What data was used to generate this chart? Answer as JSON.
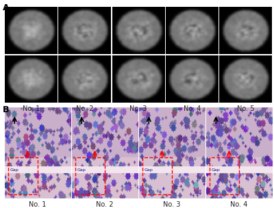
{
  "panel_a_label": "A",
  "panel_b_label": "B",
  "panel_a_numbers": [
    "No. 1",
    "No. 2",
    "No. 3",
    "No. 4",
    "No. 5"
  ],
  "panel_b_numbers": [
    "No. 1",
    "No. 2",
    "No. 3",
    "No. 4"
  ],
  "background_color": "#ffffff",
  "panel_a_bg": "#000000",
  "panel_b_bg_top": "#c8a8b8",
  "panel_b_bg_bot": "#c0a0b0",
  "label_color": "#000000",
  "label_fontsize": 9,
  "number_fontsize": 7,
  "fig_width": 4.0,
  "fig_height": 3.04,
  "dpi": 100
}
